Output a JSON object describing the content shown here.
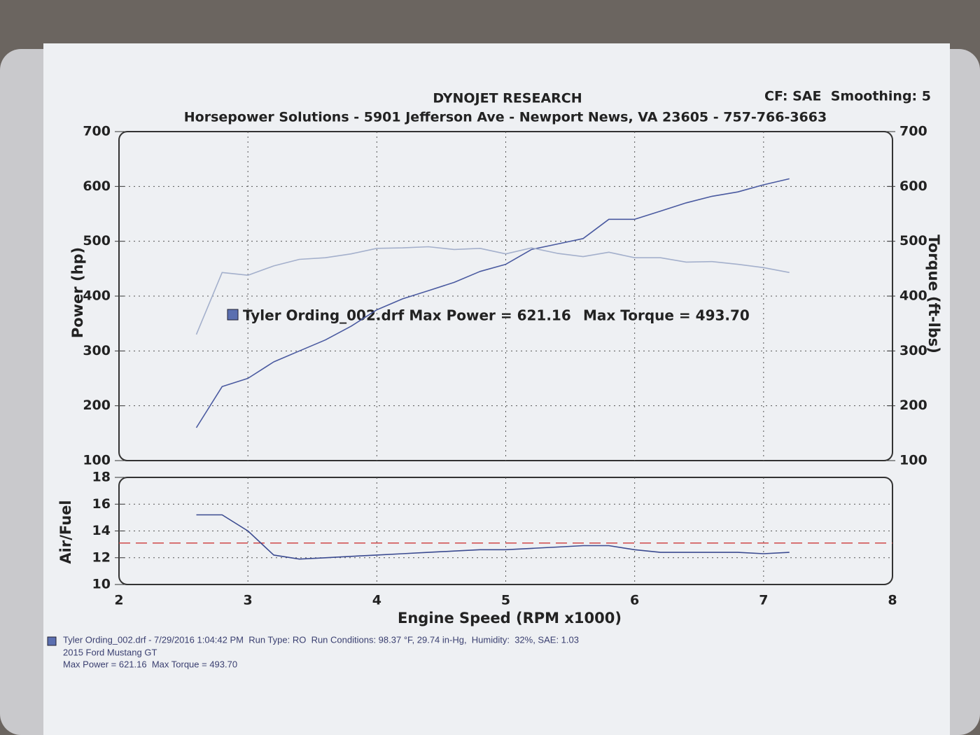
{
  "chart_data": [
    {
      "type": "line",
      "title": "DYNOJET RESEARCH",
      "subtitle": "Horsepower Solutions - 5901 Jefferson Ave - Newport News, VA 23605 - 757-766-3663",
      "settings_label": "CF: SAE  Smoothing: 5",
      "ylabel": "Power (hp)",
      "y2label": "Torque (ft-lbs)",
      "annotations": [
        "Tyler Ording_002.drf Max Power = 621.16",
        "Max Torque = 493.70"
      ],
      "ylim": [
        100,
        700
      ],
      "yticks": [
        100,
        200,
        300,
        400,
        500,
        600,
        700
      ],
      "y2lim": [
        100,
        700
      ],
      "y2ticks": [
        100,
        200,
        300,
        400,
        500,
        600,
        700
      ],
      "grid": true,
      "x": [
        2.6,
        2.8,
        3.0,
        3.2,
        3.4,
        3.6,
        3.8,
        4.0,
        4.2,
        4.4,
        4.6,
        4.8,
        5.0,
        5.2,
        5.4,
        5.6,
        5.8,
        6.0,
        6.2,
        6.4,
        6.6,
        6.8,
        7.0,
        7.2
      ],
      "series": [
        {
          "color": "#4a5aa0",
          "values": [
            160,
            235,
            250,
            280,
            300,
            320,
            345,
            375,
            395,
            410,
            425,
            445,
            458,
            485,
            495,
            505,
            540,
            540,
            555,
            570,
            582,
            590,
            603,
            614
          ]
        },
        {
          "color": "#a4b0cc",
          "axis": "y2",
          "values": [
            330,
            443,
            438,
            455,
            467,
            470,
            477,
            487,
            488,
            490,
            485,
            487,
            477,
            488,
            478,
            472,
            480,
            470,
            470,
            462,
            463,
            458,
            452,
            443
          ]
        }
      ]
    },
    {
      "type": "line",
      "ylabel": "Air/Fuel",
      "xlabel": "Engine Speed (RPM x1000)",
      "xlim": [
        2,
        8
      ],
      "xticks": [
        2,
        3,
        4,
        5,
        6,
        7,
        8
      ],
      "ylim": [
        10,
        18
      ],
      "yticks": [
        10,
        12,
        14,
        16,
        18
      ],
      "grid": true,
      "reference_line": {
        "value": 13.1,
        "color": "#d04848"
      },
      "x": [
        2.6,
        2.8,
        3.0,
        3.2,
        3.4,
        3.6,
        3.8,
        4.0,
        4.2,
        4.4,
        4.6,
        4.8,
        5.0,
        5.2,
        5.4,
        5.6,
        5.8,
        6.0,
        6.2,
        6.4,
        6.6,
        6.8,
        7.0,
        7.2
      ],
      "series": [
        {
          "color": "#3a4a90",
          "values": [
            15.2,
            15.2,
            14.0,
            12.2,
            11.9,
            12.0,
            12.1,
            12.2,
            12.3,
            12.4,
            12.5,
            12.6,
            12.6,
            12.7,
            12.8,
            12.9,
            12.9,
            12.6,
            12.4,
            12.4,
            12.4,
            12.4,
            12.3,
            12.4
          ]
        }
      ]
    }
  ],
  "footer": {
    "lines": [
      "Tyler Ording_002.drf - 7/29/2016 1:04:42 PM  Run Type: RO  Run Conditions: 98.37 °F, 29.74 in-Hg,  Humidity:  32%, SAE: 1.03",
      "2015 Ford Mustang GT",
      "Max Power = 621.16  Max Torque = 493.70"
    ]
  }
}
